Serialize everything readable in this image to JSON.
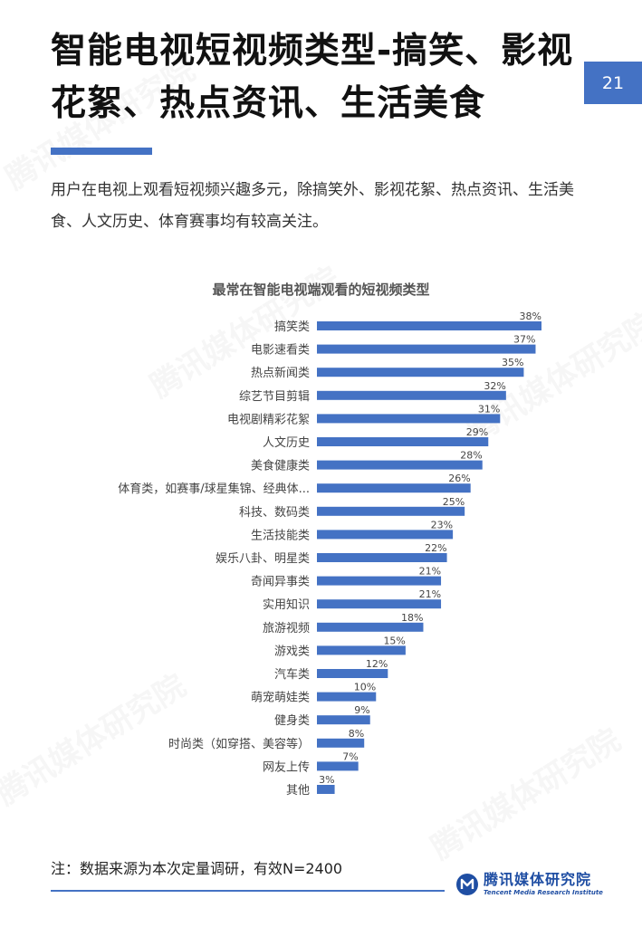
{
  "page": {
    "title": "智能电视短视频类型-搞笑、影视花絮、热点资讯、生活美食",
    "page_number": "21",
    "intro": "用户在电视上观看短视频兴趣多元，除搞笑外、影视花絮、热点资讯、生活美食、人文历史、体育赛事均有较高关注。",
    "footnote": "注：数据来源为本次定量调研，有效N=2400",
    "brand_cn": "腾讯媒体研究院",
    "brand_en": "Tencent Media Research Institute",
    "accent_color": "#4472c4"
  },
  "chart_data": {
    "type": "bar",
    "orientation": "horizontal",
    "title": "最常在智能电视端观看的短视频类型",
    "categories": [
      "搞笑类",
      "电影速看类",
      "热点新闻类",
      "综艺节目剪辑",
      "电视剧精彩花絮",
      "人文历史",
      "美食健康类",
      "体育类，如赛事/球星集锦、经典体...",
      "科技、数码类",
      "生活技能类",
      "娱乐八卦、明星类",
      "奇闻异事类",
      "实用知识",
      "旅游视频",
      "游戏类",
      "汽车类",
      "萌宠萌娃类",
      "健身类",
      "时尚类（如穿搭、美容等）",
      "网友上传",
      "其他"
    ],
    "values": [
      38,
      37,
      35,
      32,
      31,
      29,
      28,
      26,
      25,
      23,
      22,
      21,
      21,
      18,
      15,
      12,
      10,
      9,
      8,
      7,
      3
    ],
    "value_labels": [
      "38%",
      "37%",
      "35%",
      "32%",
      "31%",
      "29%",
      "28%",
      "26%",
      "25%",
      "23%",
      "22%",
      "21%",
      "21%",
      "18%",
      "15%",
      "12%",
      "10%",
      "9%",
      "8%",
      "7%",
      "3%"
    ],
    "value_unit": "%",
    "xlim": [
      0,
      38
    ],
    "grid": false,
    "legend": "none",
    "bar_color": "#4472c4"
  }
}
